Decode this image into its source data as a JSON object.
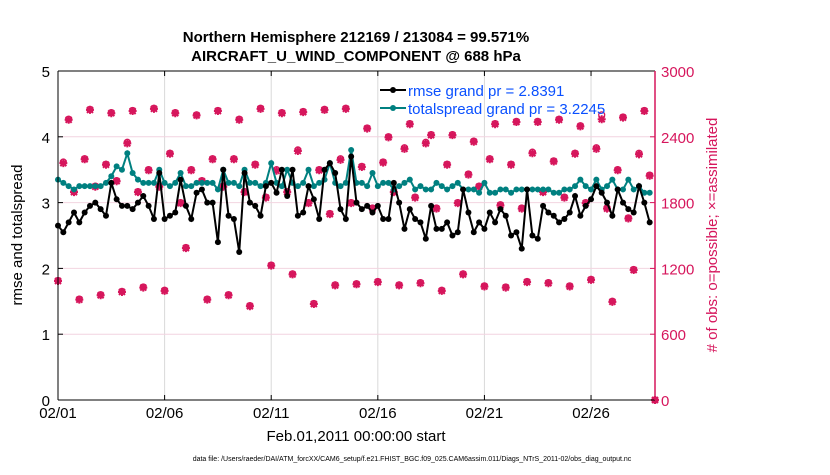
{
  "chart_data": {
    "type": "line",
    "title": [
      "Northern Hemisphere 212169 / 213084 = 99.571%",
      "AIRCRAFT_U_WIND_COMPONENT @ 688 hPa"
    ],
    "xlabel": "Feb.01,2011 00:00:00 start",
    "ylabel": "rmse and totalspread",
    "ylabel_right": "# of obs: o=possible; ×=assimilated",
    "x_tick_labels": [
      "02/01",
      "02/06",
      "02/11",
      "02/16",
      "02/21",
      "02/26"
    ],
    "y_ticks": [
      0,
      1,
      2,
      3,
      4,
      5
    ],
    "y_right_ticks": [
      0,
      600,
      1200,
      1800,
      2400,
      3000
    ],
    "ylim": [
      0,
      5
    ],
    "ylim_right": [
      0,
      3000
    ],
    "xlim_dates": [
      "02/01",
      "03/01"
    ],
    "grid": true,
    "legend_placement": "top-right",
    "footer": "data file: /Users/raeder/DAI/ATM_forcXX/CAM6_setup/f.e21.FHIST_BGC.f09_025.CAM6assim.011/Diags_NTrS_2011-02/obs_diag_output.nc",
    "colors": {
      "rmse": "#000000",
      "totalspread": "#008080",
      "obs": "#d6165c",
      "legend_text": "#0a50ff"
    },
    "series": [
      {
        "name": "rmse grand pr = 2.8391",
        "values": [
          2.65,
          2.55,
          2.7,
          2.85,
          2.7,
          2.85,
          2.95,
          3.0,
          2.9,
          2.8,
          3.3,
          3.05,
          2.95,
          2.95,
          2.9,
          3.0,
          3.1,
          2.95,
          2.75,
          3.45,
          2.75,
          2.8,
          2.85,
          3.35,
          2.95,
          2.75,
          3.15,
          3.2,
          3.0,
          3.0,
          2.4,
          3.5,
          2.8,
          2.75,
          2.25,
          3.45,
          3.0,
          2.95,
          2.8,
          3.25,
          3.3,
          3.15,
          3.5,
          3.1,
          3.5,
          2.8,
          2.85,
          3.25,
          3.05,
          2.75,
          3.5,
          3.6,
          3.45,
          2.9,
          2.75,
          3.7,
          3.0,
          2.9,
          2.95,
          2.85,
          2.95,
          2.75,
          2.75,
          3.3,
          3.0,
          2.6,
          2.9,
          2.75,
          2.7,
          2.45,
          2.95,
          2.6,
          2.6,
          2.7,
          2.5,
          2.55,
          3.2,
          2.85,
          2.55,
          2.7,
          2.6,
          2.85,
          2.7,
          2.9,
          2.8,
          2.5,
          2.55,
          2.3,
          3.2,
          2.5,
          2.45,
          2.95,
          2.85,
          2.8,
          2.7,
          2.75,
          2.85,
          3.1,
          2.8,
          2.95,
          3.05,
          3.25,
          3.15,
          3.0,
          2.8,
          3.2,
          3.0,
          2.9,
          2.85,
          3.25,
          3.0,
          2.7
        ]
      },
      {
        "name": "totalspread grand pr = 3.2245",
        "values": [
          3.35,
          3.3,
          3.25,
          3.2,
          3.25,
          3.25,
          3.25,
          3.25,
          3.25,
          3.3,
          3.4,
          3.55,
          3.5,
          3.75,
          3.45,
          3.35,
          3.3,
          3.3,
          3.3,
          3.5,
          3.3,
          3.25,
          3.3,
          3.45,
          3.25,
          3.25,
          3.3,
          3.3,
          3.3,
          3.3,
          3.2,
          3.5,
          3.3,
          3.3,
          3.25,
          3.5,
          3.3,
          3.3,
          3.25,
          3.3,
          3.6,
          3.3,
          3.25,
          3.5,
          3.3,
          3.25,
          3.3,
          3.5,
          3.25,
          3.3,
          3.35,
          3.6,
          3.3,
          3.25,
          3.3,
          3.8,
          3.3,
          3.3,
          3.25,
          3.45,
          3.25,
          3.3,
          3.3,
          3.2,
          3.25,
          3.3,
          3.35,
          3.2,
          3.25,
          3.2,
          3.2,
          3.3,
          3.25,
          3.2,
          3.25,
          3.3,
          3.2,
          3.2,
          3.2,
          3.15,
          3.3,
          3.15,
          3.15,
          3.2,
          3.2,
          3.15,
          3.2,
          3.2,
          3.2,
          3.2,
          3.2,
          3.2,
          3.2,
          3.15,
          3.15,
          3.2,
          3.2,
          3.25,
          3.35,
          3.25,
          3.2,
          3.35,
          3.2,
          3.25,
          3.35,
          3.2,
          3.2,
          3.35,
          3.2,
          3.25,
          3.15,
          3.15
        ]
      },
      {
        "name": "obs possible",
        "axis": "right",
        "values": [
          1090,
          2170,
          2560,
          1900,
          920,
          2200,
          2650,
          1950,
          960,
          2150,
          2620,
          2000,
          990,
          2350,
          2640,
          1900,
          1030,
          2100,
          2660,
          1950,
          1000,
          2250,
          2620,
          1800,
          1390,
          2100,
          2600,
          2000,
          920,
          2200,
          2640,
          1950,
          960,
          2200,
          2560,
          1900,
          860,
          2150,
          2660,
          1850,
          1230,
          2100,
          2620,
          1900,
          1150,
          2280,
          2630,
          1800,
          880,
          2100,
          2650,
          1700,
          1050,
          2200,
          2660,
          1800,
          1060,
          2130,
          2480,
          1750,
          1080,
          2170,
          2400,
          1900,
          1050,
          2300,
          2520,
          1850,
          1070,
          2350,
          2420,
          1750,
          1000,
          2150,
          2420,
          1800,
          1150,
          2060,
          2360,
          1950,
          1040,
          2200,
          2520,
          1780,
          1030,
          2150,
          2540,
          1750,
          1080,
          2260,
          2540,
          1900,
          1070,
          2180,
          2560,
          1850,
          1040,
          2250,
          2500,
          1800,
          1100,
          2300,
          2600,
          1750,
          900,
          2100,
          2580,
          1660,
          1190,
          2250,
          2640,
          2050,
          0
        ]
      },
      {
        "name": "obs assimilated",
        "axis": "right",
        "values": [
          1085,
          2160,
          2555,
          1895,
          915,
          2195,
          2645,
          1945,
          955,
          2145,
          2615,
          1995,
          985,
          2340,
          2635,
          1895,
          1025,
          2095,
          2655,
          1945,
          995,
          2245,
          2615,
          1795,
          1385,
          2095,
          2595,
          1995,
          915,
          2195,
          2635,
          1945,
          955,
          2195,
          2555,
          1895,
          855,
          2145,
          2655,
          1845,
          1225,
          2090,
          2615,
          1895,
          1145,
          2270,
          2625,
          1795,
          875,
          2095,
          2645,
          1695,
          1045,
          2190,
          2655,
          1795,
          1055,
          2125,
          2475,
          1745,
          1075,
          2165,
          2395,
          1895,
          1045,
          2290,
          2515,
          1845,
          1065,
          2340,
          2415,
          1745,
          995,
          2145,
          2415,
          1795,
          1145,
          2055,
          2355,
          1945,
          1035,
          2195,
          2515,
          1775,
          1025,
          2145,
          2535,
          1745,
          1075,
          2250,
          2535,
          1895,
          1065,
          2175,
          2555,
          1845,
          1035,
          2245,
          2495,
          1795,
          1095,
          2290,
          2560,
          1745,
          895,
          2095,
          2575,
          1655,
          1185,
          2240,
          2635,
          2045,
          0
        ]
      }
    ]
  }
}
